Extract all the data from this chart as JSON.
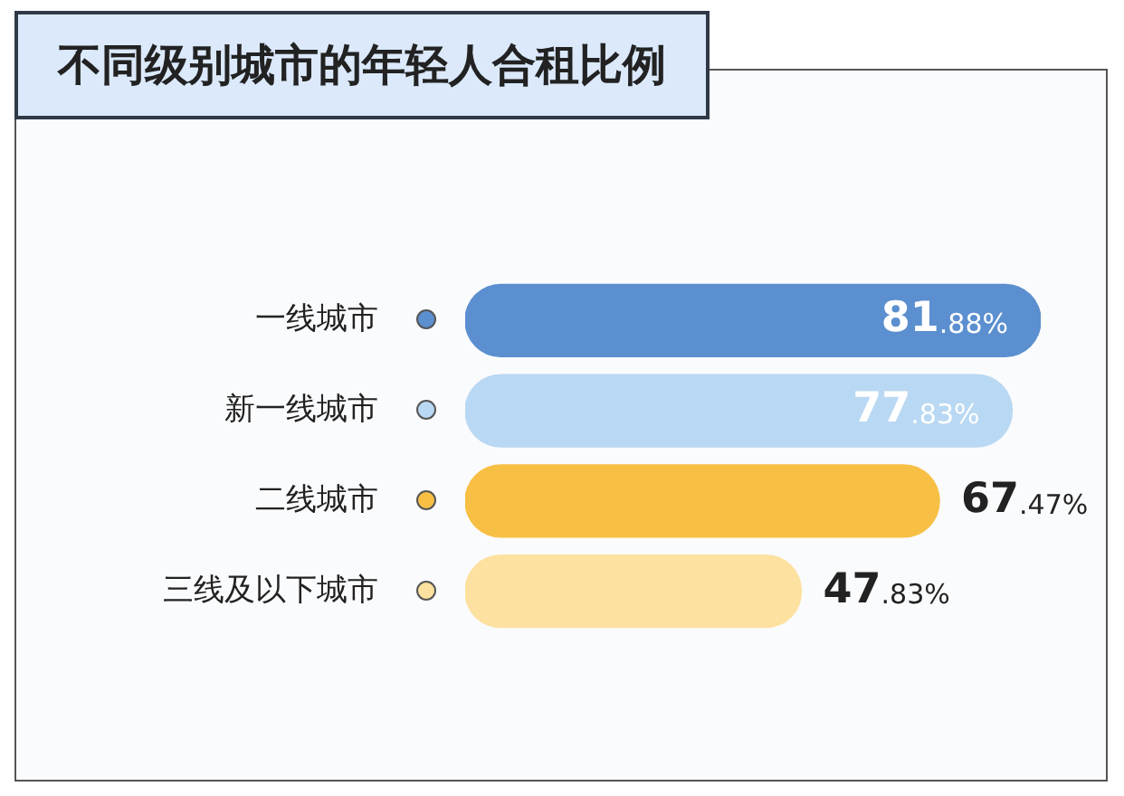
{
  "chart_data": {
    "type": "bar",
    "orientation": "horizontal",
    "title": "不同级别城市的年轻人合租比例",
    "categories": [
      "一线城市",
      "新一线城市",
      "二线城市",
      "三线及以下城市"
    ],
    "values": [
      81.88,
      77.83,
      67.47,
      47.83
    ],
    "colors": [
      "#5b8fd0",
      "#b9d8f3",
      "#f7c045",
      "#fde1a0"
    ],
    "value_labels": [
      "81.88%",
      "77.83%",
      "67.47%",
      "47.83%"
    ],
    "grid": false,
    "legend": false
  }
}
